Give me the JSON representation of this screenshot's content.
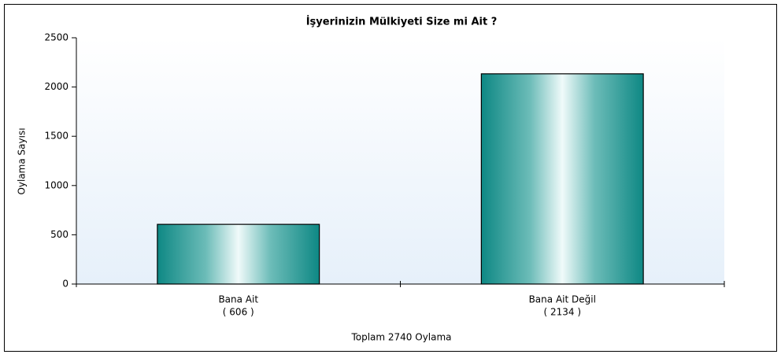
{
  "chart_data": {
    "type": "bar",
    "title": "İşyerinizin Mülkiyeti Size mi Ait ?",
    "categories": [
      "Bana Ait",
      "Bana Ait Değil"
    ],
    "values": [
      606,
      2134
    ],
    "value_labels": [
      "( 606 )",
      "( 2134 )"
    ],
    "color": "#108c88",
    "x_label": "Toplam 2740 Oylama",
    "y_label": "Oylama Sayısı",
    "ylim": [
      0,
      2500
    ],
    "yticks": [
      0,
      500,
      1000,
      1500,
      2000,
      2500
    ]
  }
}
